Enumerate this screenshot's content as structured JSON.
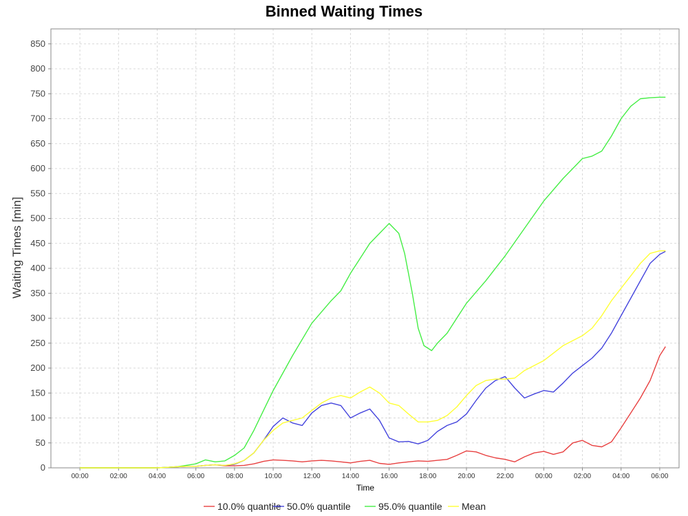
{
  "chart_data": {
    "type": "line",
    "title": "Binned Waiting Times",
    "xlabel": "Time",
    "ylabel": "Waiting Times [min]",
    "ylim": [
      0,
      880
    ],
    "yticks": [
      0,
      50,
      100,
      150,
      200,
      250,
      300,
      350,
      400,
      450,
      500,
      550,
      600,
      650,
      700,
      750,
      800,
      850
    ],
    "xlim": [
      -1.5,
      31
    ],
    "xticks": [
      "00:00",
      "02:00",
      "04:00",
      "06:00",
      "08:00",
      "10:00",
      "12:00",
      "14:00",
      "16:00",
      "18:00",
      "20:00",
      "22:00",
      "00:00",
      "02:00",
      "04:00",
      "06:00"
    ],
    "grid": true,
    "legend": "bottom",
    "series": [
      {
        "name": "10.0% quantile",
        "color": "#e84040",
        "x": [
          0,
          4,
          4.5,
          5,
          5.5,
          6,
          6.5,
          7,
          7.5,
          8,
          8.5,
          9,
          9.5,
          10,
          10.5,
          11,
          11.5,
          12,
          12.5,
          13,
          13.5,
          14,
          14.5,
          15,
          15.5,
          16,
          16.5,
          17,
          17.5,
          18,
          18.5,
          19,
          19.5,
          20,
          20.5,
          21,
          21.5,
          22,
          22.5,
          23,
          23.5,
          24,
          24.5,
          25,
          25.5,
          26,
          26.5,
          27,
          27.5,
          28,
          28.5,
          29,
          29.5,
          30,
          30.3
        ],
        "y": [
          0,
          0,
          1,
          2,
          3,
          3,
          5,
          6,
          4,
          4,
          5,
          8,
          13,
          16,
          15,
          14,
          12,
          14,
          15,
          14,
          12,
          10,
          13,
          15,
          9,
          7,
          10,
          12,
          14,
          13,
          15,
          17,
          25,
          34,
          32,
          25,
          20,
          17,
          12,
          22,
          30,
          33,
          27,
          32,
          50,
          55,
          45,
          42,
          52,
          80,
          110,
          140,
          175,
          225,
          243
        ]
      },
      {
        "name": "50.0% quantile",
        "color": "#4444dd",
        "x": [
          0,
          4,
          4.5,
          5,
          5.5,
          6,
          6.5,
          7,
          7.5,
          8,
          8.5,
          9,
          9.5,
          10,
          10.5,
          11,
          11.5,
          12,
          12.5,
          13,
          13.5,
          14,
          14.5,
          15,
          15.5,
          16,
          16.5,
          17,
          17.5,
          18,
          18.5,
          19,
          19.5,
          20,
          20.5,
          21,
          21.5,
          22,
          22.5,
          23,
          23.5,
          24,
          24.5,
          25,
          25.5,
          26,
          26.5,
          27,
          27.5,
          28,
          28.5,
          29,
          29.5,
          30,
          30.3
        ],
        "y": [
          0,
          0,
          1,
          2,
          3,
          3,
          5,
          6,
          5,
          7,
          15,
          30,
          55,
          83,
          100,
          90,
          85,
          110,
          125,
          130,
          125,
          100,
          110,
          118,
          95,
          60,
          52,
          53,
          48,
          55,
          73,
          85,
          92,
          108,
          135,
          160,
          175,
          183,
          160,
          140,
          148,
          155,
          152,
          170,
          190,
          205,
          220,
          240,
          270,
          305,
          340,
          375,
          410,
          428,
          434
        ]
      },
      {
        "name": "95.0% quantile",
        "color": "#44ee44",
        "x": [
          0,
          4,
          4.5,
          5,
          5.5,
          6,
          6.5,
          7,
          7.5,
          8,
          8.5,
          9,
          9.5,
          10,
          11,
          12,
          13,
          13.5,
          14,
          14.5,
          15,
          15.5,
          16,
          16.5,
          16.8,
          17.2,
          17.5,
          17.8,
          18.2,
          18.5,
          19,
          19.5,
          20,
          21,
          22,
          23,
          24,
          25,
          25.5,
          26,
          26.5,
          27,
          27.5,
          28,
          28.5,
          29,
          29.5,
          30,
          30.3
        ],
        "y": [
          0,
          0,
          1,
          2,
          5,
          8,
          16,
          12,
          14,
          25,
          40,
          75,
          115,
          155,
          225,
          290,
          335,
          355,
          390,
          420,
          450,
          470,
          490,
          470,
          430,
          350,
          280,
          245,
          235,
          250,
          270,
          300,
          330,
          375,
          425,
          480,
          535,
          580,
          600,
          620,
          625,
          635,
          665,
          700,
          725,
          740,
          742,
          743,
          743
        ]
      },
      {
        "name": "Mean",
        "color": "#ffff33",
        "x": [
          0,
          4,
          4.5,
          5,
          5.5,
          6,
          6.5,
          7,
          7.5,
          8,
          8.5,
          9,
          9.5,
          10,
          10.5,
          11,
          11.5,
          12,
          12.5,
          13,
          13.5,
          14,
          14.5,
          15,
          15.5,
          16,
          16.5,
          17,
          17.5,
          18,
          18.5,
          19,
          19.5,
          20,
          20.5,
          21,
          21.5,
          22,
          22.5,
          23,
          23.5,
          24,
          24.5,
          25,
          25.5,
          26,
          26.5,
          27,
          27.5,
          28,
          28.5,
          29,
          29.5,
          30,
          30.3
        ],
        "y": [
          0,
          0,
          1,
          2,
          3,
          3,
          5,
          6,
          5,
          8,
          15,
          30,
          55,
          75,
          90,
          95,
          100,
          115,
          130,
          140,
          145,
          140,
          152,
          162,
          150,
          130,
          125,
          108,
          92,
          92,
          95,
          105,
          122,
          145,
          165,
          175,
          178,
          178,
          180,
          195,
          205,
          215,
          230,
          245,
          255,
          265,
          280,
          305,
          335,
          360,
          385,
          410,
          430,
          435,
          435
        ]
      }
    ]
  }
}
